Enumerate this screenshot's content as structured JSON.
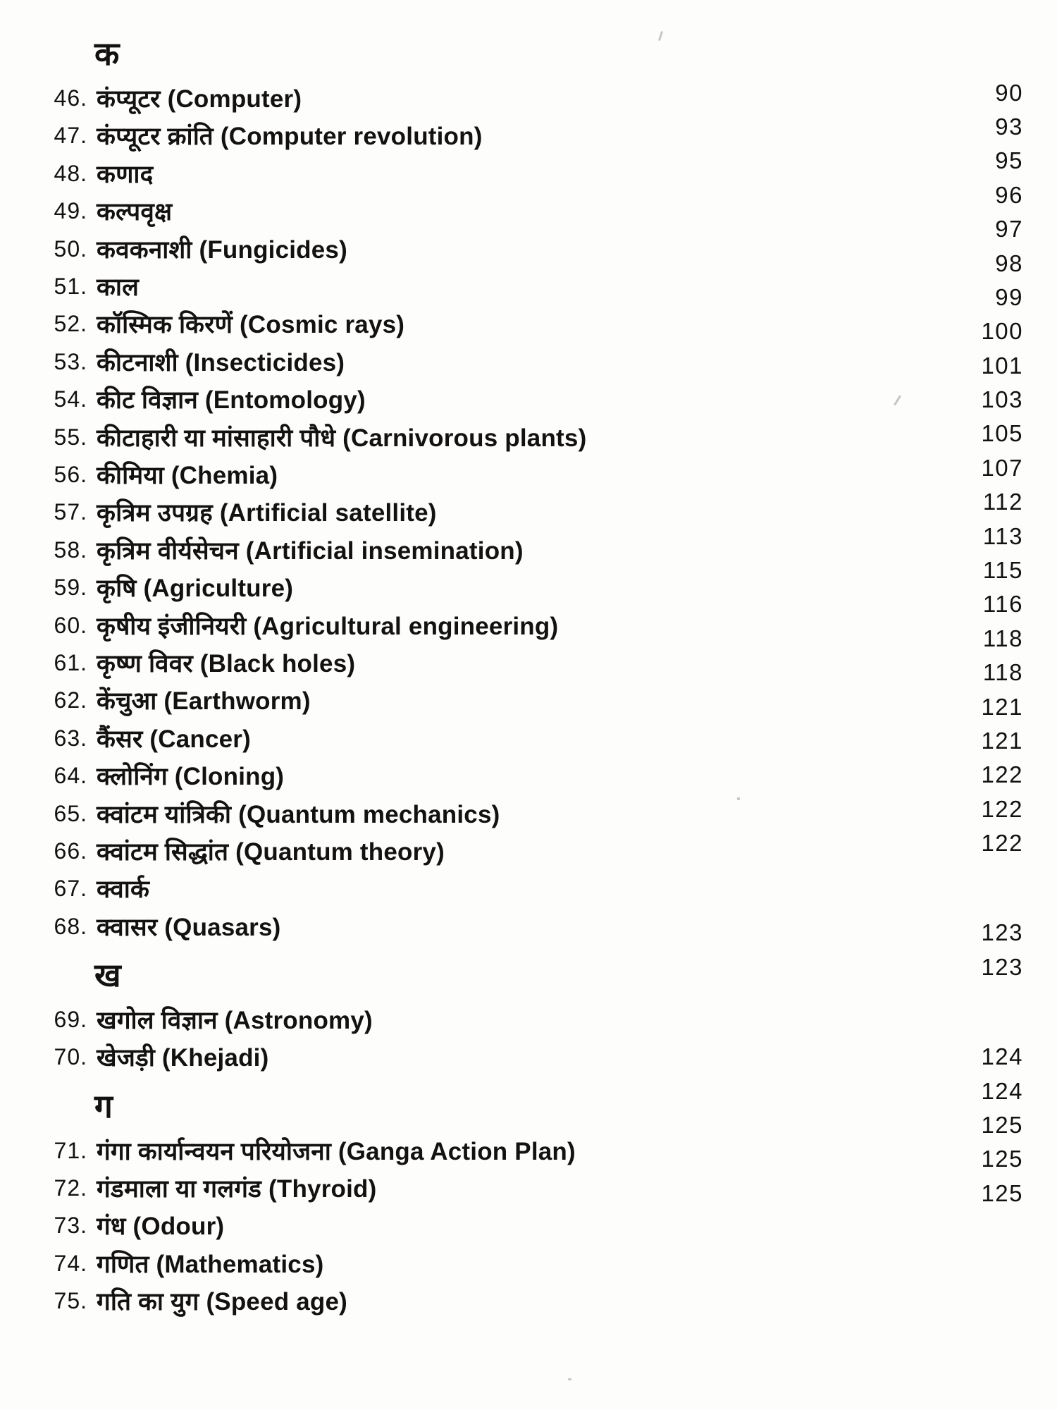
{
  "document": {
    "sections": [
      {
        "heading": "क",
        "entries": [
          {
            "number": "46.",
            "title": "कंप्यूटर (Computer)",
            "page": "90"
          },
          {
            "number": "47.",
            "title": "कंप्यूटर क्रांति (Computer revolution)",
            "page": "93"
          },
          {
            "number": "48.",
            "title": "कणाद",
            "page": "95"
          },
          {
            "number": "49.",
            "title": "कल्पवृक्ष",
            "page": "96"
          },
          {
            "number": "50.",
            "title": "कवकनाशी (Fungicides)",
            "page": "97"
          },
          {
            "number": "51.",
            "title": "काल",
            "page": "98"
          },
          {
            "number": "52.",
            "title": "कॉस्मिक किरणें (Cosmic rays)",
            "page": "99"
          },
          {
            "number": "53.",
            "title": "कीटनाशी (Insecticides)",
            "page": "100"
          },
          {
            "number": "54.",
            "title": "कीट विज्ञान (Entomology)",
            "page": "101"
          },
          {
            "number": "55.",
            "title": "कीटाहारी या मांसाहारी पौधे (Carnivorous plants)",
            "page": "103"
          },
          {
            "number": "56.",
            "title": "कीमिया (Chemia)",
            "page": "105"
          },
          {
            "number": "57.",
            "title": "कृत्रिम उपग्रह (Artificial satellite)",
            "page": "107"
          },
          {
            "number": "58.",
            "title": "कृत्रिम वीर्यसेचन (Artificial insemination)",
            "page": "112"
          },
          {
            "number": "59.",
            "title": "कृषि (Agriculture)",
            "page": "113"
          },
          {
            "number": "60.",
            "title": "कृषीय इंजीनियरी (Agricultural engineering)",
            "page": "115"
          },
          {
            "number": "61.",
            "title": "कृष्ण विवर (Black holes)",
            "page": "116"
          },
          {
            "number": "62.",
            "title": "केंचुआ (Earthworm)",
            "page": "118"
          },
          {
            "number": "63.",
            "title": "कैंसर (Cancer)",
            "page": "118"
          },
          {
            "number": "64.",
            "title": "क्लोनिंग (Cloning)",
            "page": "121"
          },
          {
            "number": "65.",
            "title": "क्वांटम यांत्रिकी (Quantum mechanics)",
            "page": "121"
          },
          {
            "number": "66.",
            "title": "क्वांटम सिद्धांत (Quantum theory)",
            "page": "122"
          },
          {
            "number": "67.",
            "title": "क्वार्क",
            "page": "122"
          },
          {
            "number": "68.",
            "title": "क्वासर (Quasars)",
            "page": "122"
          }
        ]
      },
      {
        "heading": "ख",
        "entries": [
          {
            "number": "69.",
            "title": "खगोल विज्ञान (Astronomy)",
            "page": "123"
          },
          {
            "number": "70.",
            "title": "खेजड़ी (Khejadi)",
            "page": "123"
          }
        ]
      },
      {
        "heading": "ग",
        "entries": [
          {
            "number": "71.",
            "title": "गंगा कार्यान्वयन परियोजना (Ganga Action Plan)",
            "page": "124"
          },
          {
            "number": "72.",
            "title": "गंडमाला या गलगंड (Thyroid)",
            "page": "124"
          },
          {
            "number": "73.",
            "title": "गंध (Odour)",
            "page": "125"
          },
          {
            "number": "74.",
            "title": "गणित (Mathematics)",
            "page": "125"
          },
          {
            "number": "75.",
            "title": "गति का युग (Speed age)",
            "page": "125"
          }
        ]
      }
    ]
  }
}
